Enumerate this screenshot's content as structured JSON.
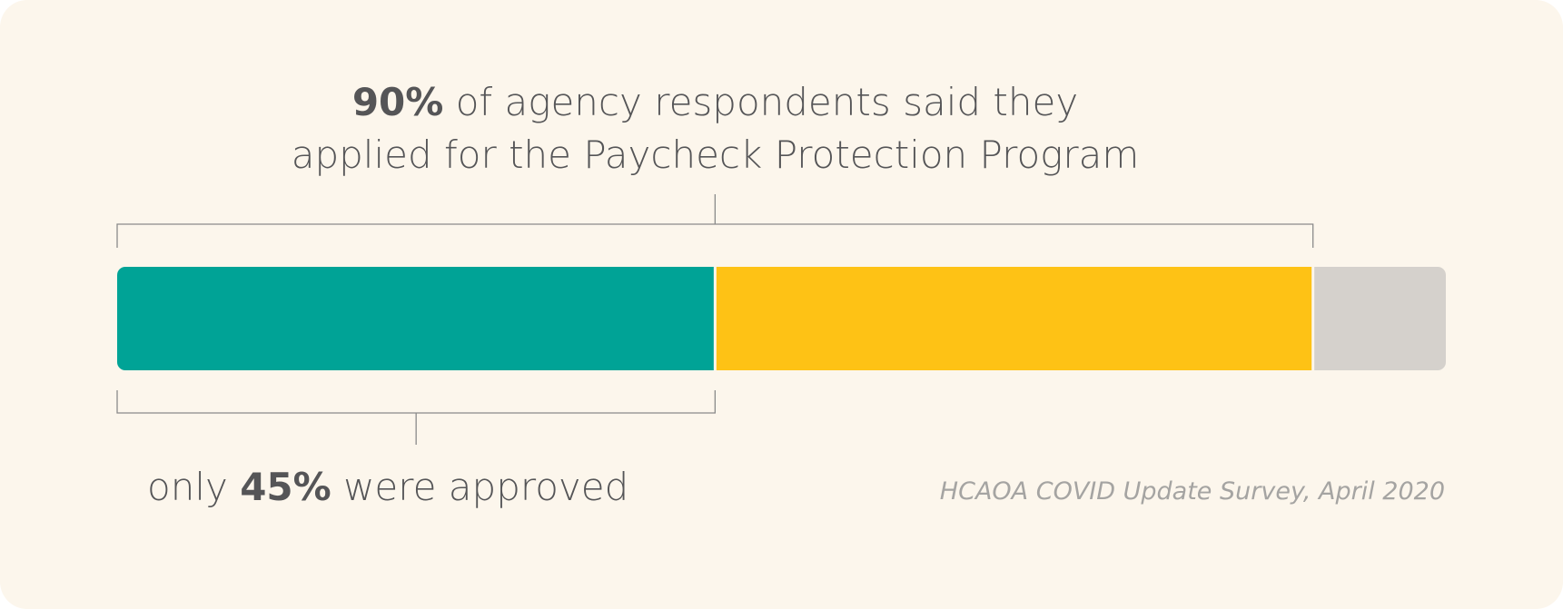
{
  "headline": {
    "strong": "90%",
    "line1_rest": " of agency respondents said they",
    "line2": "applied for the Paycheck Protection Program"
  },
  "bottom_label": {
    "prefix": "only ",
    "strong": "45%",
    "suffix": " were approved"
  },
  "source": "HCAOA COVID Update Survey, April 2020",
  "colors": {
    "background": "#fcf6ec",
    "approved": "#00a396",
    "applied_not_approved": "#fec215",
    "did_not_apply": "#d5d1cc",
    "bracket": "#8a8a8a",
    "text": "#555557"
  },
  "chart_data": {
    "type": "bar",
    "orientation": "horizontal-stacked",
    "total": 100,
    "segments": [
      {
        "key": "approved",
        "value": 45,
        "color": "#00a396"
      },
      {
        "key": "applied_not_approved",
        "value": 45,
        "color": "#fec215"
      },
      {
        "key": "did_not_apply",
        "value": 10,
        "color": "#d5d1cc"
      }
    ],
    "annotations": [
      {
        "text": "90% of agency respondents said they applied for the Paycheck Protection Program",
        "spans": [
          0,
          90
        ],
        "position": "above"
      },
      {
        "text": "only 45% were approved",
        "spans": [
          0,
          45
        ],
        "position": "below"
      }
    ],
    "grid": false,
    "legend": "none"
  }
}
